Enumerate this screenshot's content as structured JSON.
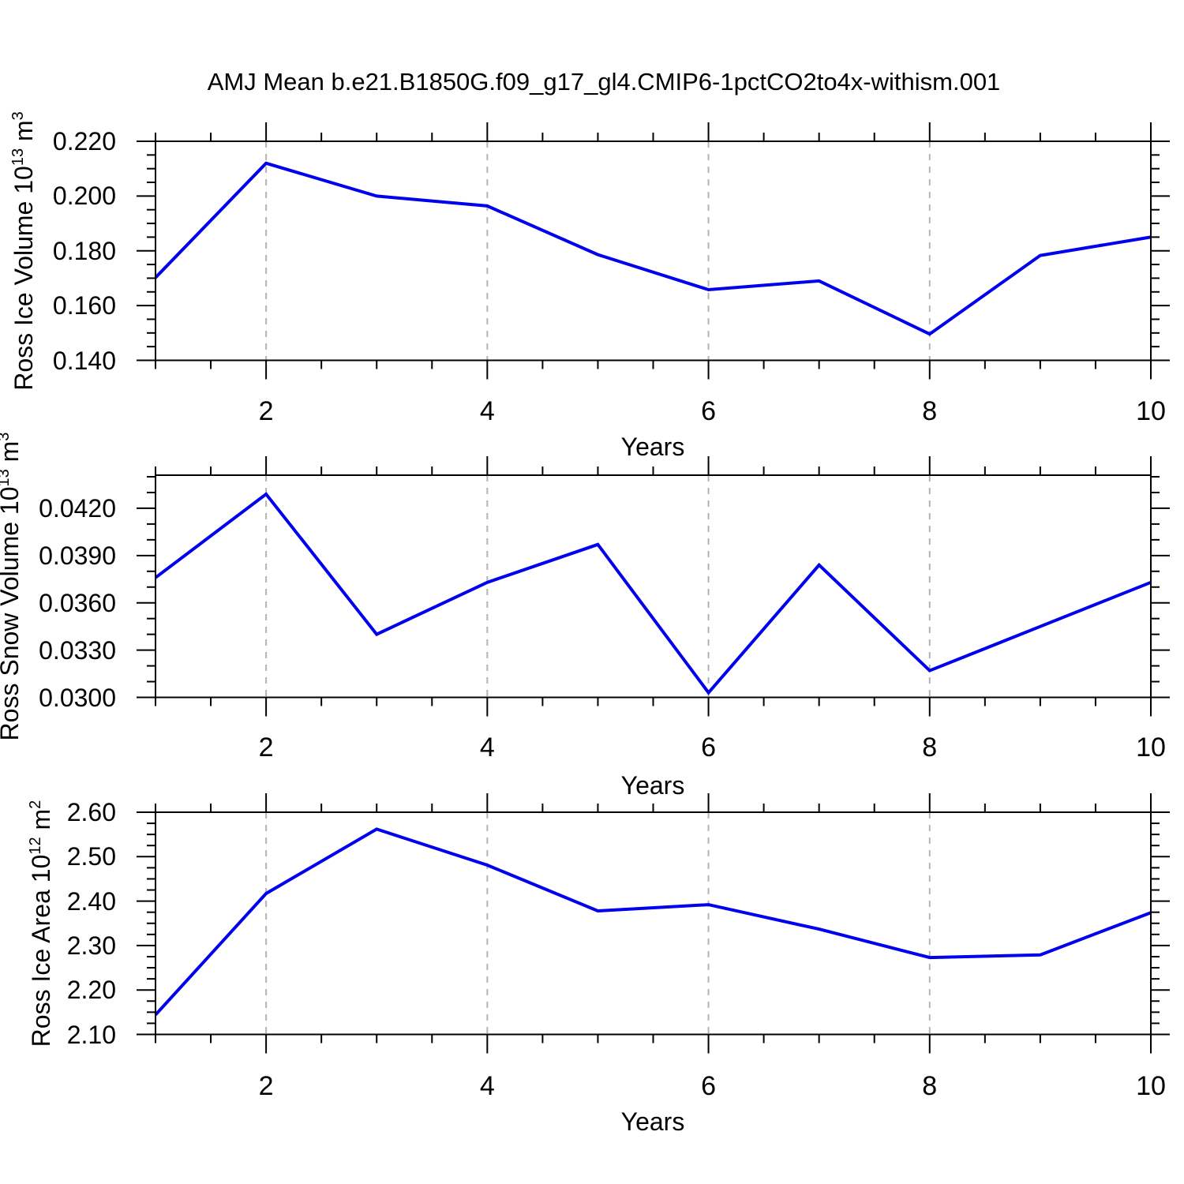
{
  "title": "AMJ Mean b.e21.B1850G.f09_g17_gl4.CMIP6-1pctCO2to4x-withism.001",
  "colors": {
    "line": "#0000EE",
    "grid": "#B3B3B3",
    "frame": "#000000",
    "background": "#FFFFFF"
  },
  "chart_data": [
    {
      "type": "line",
      "title": "",
      "xlabel": "Years",
      "ylabel": "Ross Ice Volume 10^13 m^3",
      "ylabel_parts": {
        "base": "Ross Ice Volume 10",
        "sup1": "13",
        "mid": " m",
        "sup2": "3"
      },
      "x": [
        1,
        2,
        3,
        4,
        5,
        6,
        7,
        8,
        9,
        10
      ],
      "values": [
        0.1702,
        0.212,
        0.2,
        0.1964,
        0.1786,
        0.1658,
        0.169,
        0.1496,
        0.1783,
        0.185
      ],
      "xlim": [
        1,
        10
      ],
      "ylim": [
        0.14,
        0.22
      ],
      "xticks_major": [
        2,
        4,
        6,
        8,
        10
      ],
      "xtick_labels": [
        "2",
        "4",
        "6",
        "8",
        "10"
      ],
      "xtick_minor_step": 0.5,
      "yticks_major": [
        0.14,
        0.16,
        0.18,
        0.2,
        0.22
      ],
      "ytick_labels": [
        "0.140",
        "0.160",
        "0.180",
        "0.200",
        "0.220"
      ],
      "ytick_minor_step": 0.005,
      "grid_x": [
        2,
        4,
        6,
        8
      ],
      "grid_style": "vertical-dashed",
      "legend": "none"
    },
    {
      "type": "line",
      "title": "",
      "xlabel": "Years",
      "ylabel": "Ross Snow Volume 10^13 m^3",
      "ylabel_parts": {
        "base": "Ross Snow Volume 10",
        "sup1": "13",
        "mid": " m",
        "sup2": "3"
      },
      "x": [
        1,
        2,
        3,
        4,
        5,
        6,
        7,
        8,
        9,
        10
      ],
      "values": [
        0.0376,
        0.0429,
        0.034,
        0.0373,
        0.0397,
        0.0303,
        0.0384,
        0.0317,
        0.0345,
        0.0373
      ],
      "xlim": [
        1,
        10
      ],
      "ylim": [
        0.03,
        0.0441
      ],
      "xticks_major": [
        2,
        4,
        6,
        8,
        10
      ],
      "xtick_labels": [
        "2",
        "4",
        "6",
        "8",
        "10"
      ],
      "xtick_minor_step": 0.5,
      "yticks_major": [
        0.03,
        0.033,
        0.036,
        0.039,
        0.042
      ],
      "ytick_labels": [
        "0.0300",
        "0.0330",
        "0.0360",
        "0.0390",
        "0.0420"
      ],
      "ytick_minor_step": 0.001,
      "grid_x": [
        2,
        4,
        6,
        8
      ],
      "grid_style": "vertical-dashed",
      "legend": "none"
    },
    {
      "type": "line",
      "title": "",
      "xlabel": "Years",
      "ylabel": "Ross Ice Area 10^12 m^2",
      "ylabel_parts": {
        "base": "Ross Ice Area 10",
        "sup1": "12",
        "mid": " m",
        "sup2": "2"
      },
      "x": [
        1,
        2,
        3,
        4,
        5,
        6,
        7,
        8,
        9,
        10
      ],
      "values": [
        2.144,
        2.417,
        2.562,
        2.481,
        2.378,
        2.392,
        2.337,
        2.273,
        2.279,
        2.374
      ],
      "xlim": [
        1,
        10
      ],
      "ylim": [
        2.1,
        2.6
      ],
      "xticks_major": [
        2,
        4,
        6,
        8,
        10
      ],
      "xtick_labels": [
        "2",
        "4",
        "6",
        "8",
        "10"
      ],
      "xtick_minor_step": 0.5,
      "yticks_major": [
        2.1,
        2.2,
        2.3,
        2.4,
        2.5,
        2.6
      ],
      "ytick_labels": [
        "2.10",
        "2.20",
        "2.30",
        "2.40",
        "2.50",
        "2.60"
      ],
      "ytick_minor_step": 0.025,
      "grid_x": [
        2,
        4,
        6,
        8
      ],
      "grid_style": "vertical-dashed",
      "legend": "none"
    }
  ]
}
